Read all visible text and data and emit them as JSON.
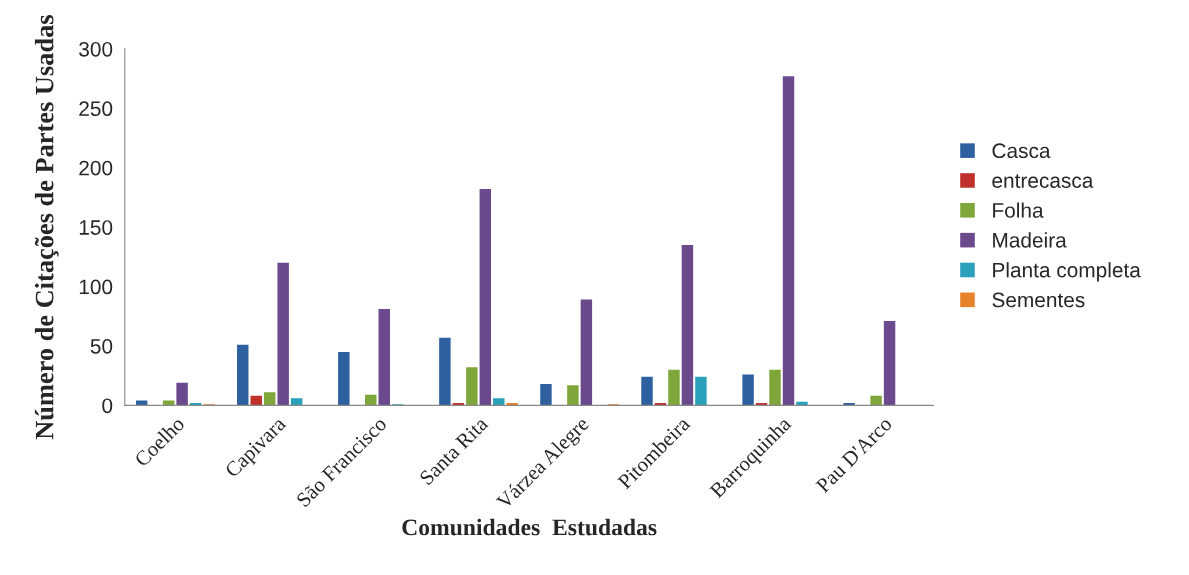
{
  "chart_data": {
    "type": "bar",
    "xlabel": "Comunidades  Estudadas",
    "ylabel": "Número de Citações de Partes Usadas",
    "categories": [
      "Coelho",
      "Capivara",
      "São Francisco",
      "Santa Rita",
      "Várzea Alegre",
      "Pitombeira",
      "Barroquinha",
      "Pau D'Arco"
    ],
    "series": [
      {
        "name": "Casca",
        "color": "#2e5f9e",
        "values": [
          4,
          51,
          45,
          57,
          18,
          24,
          26,
          2
        ]
      },
      {
        "name": "entrecasca",
        "color": "#c0302c",
        "values": [
          0,
          8,
          0,
          2,
          0,
          2,
          2,
          0
        ]
      },
      {
        "name": "Folha",
        "color": "#7fa63a",
        "values": [
          4,
          11,
          9,
          32,
          17,
          30,
          30,
          8
        ]
      },
      {
        "name": "Madeira",
        "color": "#6a4a8c",
        "values": [
          19,
          120,
          81,
          182,
          89,
          135,
          277,
          71
        ]
      },
      {
        "name": "Planta completa",
        "color": "#2aa0bb",
        "values": [
          2,
          6,
          1,
          6,
          0,
          24,
          3,
          0
        ]
      },
      {
        "name": "Sementes",
        "color": "#e8822a",
        "values": [
          1,
          0,
          0,
          2,
          1,
          0,
          0,
          0
        ]
      }
    ],
    "ylim": [
      0,
      300
    ],
    "yticks": [
      0,
      50,
      100,
      150,
      200,
      250,
      300
    ],
    "grid": false,
    "legend": "right"
  }
}
